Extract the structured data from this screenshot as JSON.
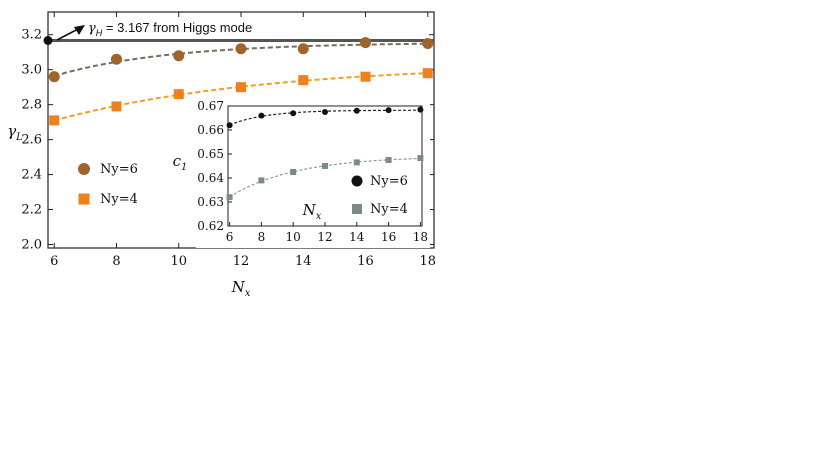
{
  "chart_data": [
    {
      "type": "scatter",
      "ylabel_base": "γ",
      "ylabel_sub": "L",
      "xlabel_base": "N",
      "xlabel_sub": "x",
      "xlim": [
        5.8,
        18.2
      ],
      "ylim": [
        1.98,
        3.33
      ],
      "xticks": [
        "6",
        "8",
        "10",
        "12",
        "14",
        "16",
        "18"
      ],
      "yticks": [
        "2.0",
        "2.2",
        "2.4",
        "2.6",
        "2.8",
        "3.0",
        "3.2"
      ],
      "grid": false,
      "legend_position": "left-middle",
      "series": [
        {
          "name": "Ny=6",
          "marker": "circle",
          "color": "#a0642a",
          "fit_color": "#7a6a58",
          "x": [
            6,
            8,
            10,
            12,
            14,
            16,
            18
          ],
          "y": [
            2.96,
            3.06,
            3.08,
            3.12,
            3.12,
            3.155,
            3.15
          ]
        },
        {
          "name": "Ny=4",
          "marker": "square",
          "color": "#f07f1c",
          "fit_color": "#f0a020",
          "x": [
            6,
            8,
            10,
            12,
            14,
            16,
            18
          ],
          "y": [
            2.71,
            2.79,
            2.86,
            2.9,
            2.94,
            2.96,
            2.98
          ]
        }
      ],
      "reference_line": {
        "value": 3.167,
        "label_base": "γ",
        "label_sub": "H",
        "label_rest": " = 3.167 from Higgs mode",
        "color": "#555555"
      }
    },
    {
      "type": "scatter",
      "ylabel_base": "c",
      "ylabel_sub": "1",
      "xlabel_base": "N",
      "xlabel_sub": "x",
      "xlim": [
        5.9,
        18.1
      ],
      "ylim": [
        0.62,
        0.67
      ],
      "xticks": [
        "6",
        "8",
        "10",
        "12",
        "14",
        "16",
        "18"
      ],
      "yticks": [
        "0.62",
        "0.63",
        "0.64",
        "0.65",
        "0.66",
        "0.67"
      ],
      "grid": false,
      "legend_position": "right-middle",
      "series": [
        {
          "name": "Ny=6",
          "marker": "circle",
          "color": "#111111",
          "fit_color": "#222222",
          "x": [
            6,
            8,
            10,
            12,
            14,
            16,
            18
          ],
          "y": [
            0.662,
            0.666,
            0.667,
            0.6675,
            0.668,
            0.6683,
            0.6685
          ]
        },
        {
          "name": "Ny=4",
          "marker": "square",
          "color": "#7a8a8a",
          "fit_color": "#8a9a9a",
          "x": [
            6,
            8,
            10,
            12,
            14,
            16,
            18
          ],
          "y": [
            0.632,
            0.639,
            0.6425,
            0.645,
            0.6465,
            0.6475,
            0.6483
          ]
        }
      ]
    }
  ]
}
